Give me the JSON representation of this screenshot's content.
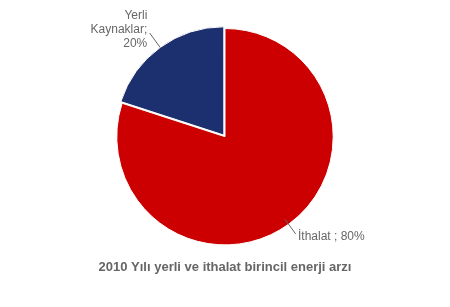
{
  "chart_data": {
    "type": "pie",
    "title": "2010 Yılı yerli ve ithalat birincil enerji arzı",
    "values": [
      80,
      20
    ],
    "value_labels": [
      "İthalat ; 80%",
      "Yerli\nKaynaklar;\n20%"
    ],
    "colors": [
      "#CC0000",
      "#1C2F6E"
    ],
    "data_labels": true,
    "legend": false
  }
}
